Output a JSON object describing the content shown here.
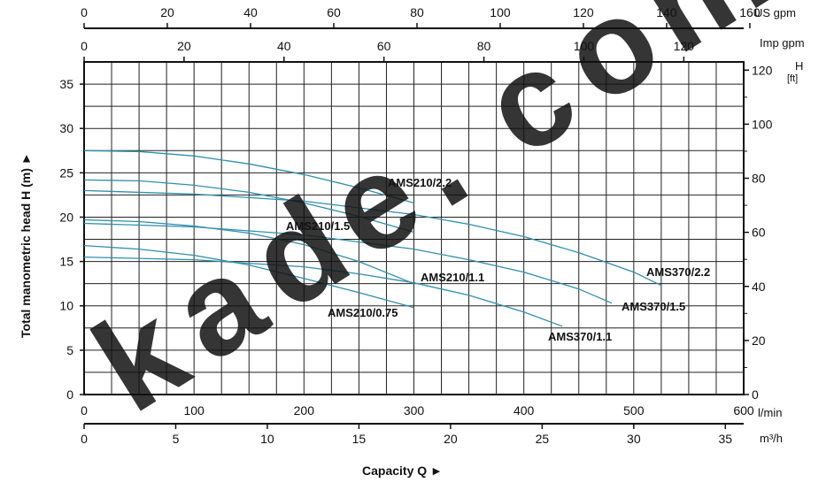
{
  "chart_data": {
    "type": "line",
    "xlabel": "Capacity Q ►",
    "ylabel": "Total manometric head H (m) ►",
    "xlim_lmin": [
      0,
      600
    ],
    "ylim_m": [
      0,
      37.5
    ],
    "grid": true,
    "axes": {
      "bottom_lmin": {
        "unit": "l/min",
        "ticks": [
          "0",
          "100",
          "200",
          "300",
          "400",
          "500",
          "600"
        ]
      },
      "bottom_m3h": {
        "unit": "m³/h",
        "ticks": [
          "0",
          "5",
          "10",
          "15",
          "20",
          "25",
          "30",
          "35"
        ]
      },
      "top_usgpm": {
        "unit": "US gpm",
        "ticks": [
          "0",
          "20",
          "40",
          "60",
          "80",
          "100",
          "120",
          "140",
          "160"
        ]
      },
      "top_impgpm": {
        "unit": "Imp gpm",
        "ticks": [
          "0",
          "20",
          "40",
          "60",
          "80",
          "100",
          "120"
        ]
      },
      "left_m": {
        "ticks": [
          "0",
          "5",
          "10",
          "15",
          "20",
          "25",
          "30",
          "35"
        ]
      },
      "right_ft": {
        "unit": "H [ft]",
        "ticks": [
          "0",
          "20",
          "40",
          "60",
          "80",
          "100",
          "120"
        ]
      }
    },
    "series": [
      {
        "name": "AMS210/2.2",
        "x": [
          0,
          50,
          100,
          150,
          200,
          250,
          300
        ],
        "y": [
          27.5,
          27.4,
          26.9,
          26.0,
          24.8,
          23.3,
          21.6
        ]
      },
      {
        "name": "AMS210/1.5",
        "x": [
          0,
          50,
          100,
          150,
          200,
          250,
          300
        ],
        "y": [
          24.2,
          24.1,
          23.6,
          22.8,
          21.6,
          20.1,
          18.3
        ]
      },
      {
        "name": "AMS210/1.1",
        "x": [
          0,
          50,
          100,
          150,
          200,
          250,
          300
        ],
        "y": [
          19.7,
          19.5,
          19.0,
          18.2,
          16.9,
          15.0,
          12.5
        ]
      },
      {
        "name": "AMS210/0.75",
        "x": [
          0,
          50,
          100,
          150,
          200,
          250,
          300
        ],
        "y": [
          16.8,
          16.4,
          15.7,
          14.6,
          13.1,
          11.5,
          9.8
        ]
      },
      {
        "name": "AMS370/2.2",
        "x": [
          0,
          100,
          200,
          300,
          350,
          400,
          450,
          500,
          525
        ],
        "y": [
          23.0,
          22.6,
          21.8,
          20.3,
          19.2,
          17.8,
          16.0,
          13.8,
          12.3
        ]
      },
      {
        "name": "AMS370/1.5",
        "x": [
          0,
          100,
          200,
          300,
          350,
          400,
          450,
          480
        ],
        "y": [
          19.3,
          18.9,
          18.0,
          16.4,
          15.2,
          13.8,
          11.9,
          10.3
        ]
      },
      {
        "name": "AMS370/1.1",
        "x": [
          0,
          100,
          200,
          250,
          300,
          350,
          400,
          435
        ],
        "y": [
          15.5,
          15.2,
          14.4,
          13.6,
          12.6,
          11.2,
          9.3,
          7.7
        ]
      }
    ],
    "annotations": [
      "AMS210/2.2",
      "AMS210/1.5",
      "AMS210/1.1",
      "AMS210/0.75",
      "AMS370/2.2",
      "AMS370/1.5",
      "AMS370/1.1"
    ],
    "watermark": "kade.com"
  },
  "colors": {
    "curve": "#2e8fae",
    "grid": "#222222",
    "watermark": "#2f6db5"
  }
}
